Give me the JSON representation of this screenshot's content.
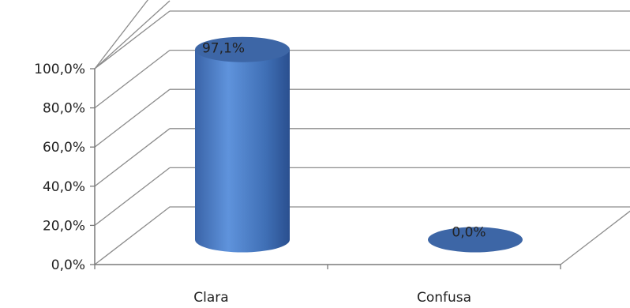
{
  "chart_data": {
    "type": "bar",
    "style": "3d-cylinder",
    "title": "",
    "xlabel": "",
    "ylabel": "",
    "categories": [
      "Clara",
      "Confusa"
    ],
    "values": [
      97.1,
      0.0
    ],
    "data_labels": [
      "97,1%",
      "0,0%"
    ],
    "ylim": [
      0,
      100
    ],
    "yticks": [
      0,
      20,
      40,
      60,
      80,
      100
    ],
    "ytick_labels": [
      "0,0%",
      "20,0%",
      "40,0%",
      "60,0%",
      "80,0%",
      "100,0%"
    ],
    "grid": true,
    "legend": "none",
    "bar_color": "#4a7ec9"
  }
}
